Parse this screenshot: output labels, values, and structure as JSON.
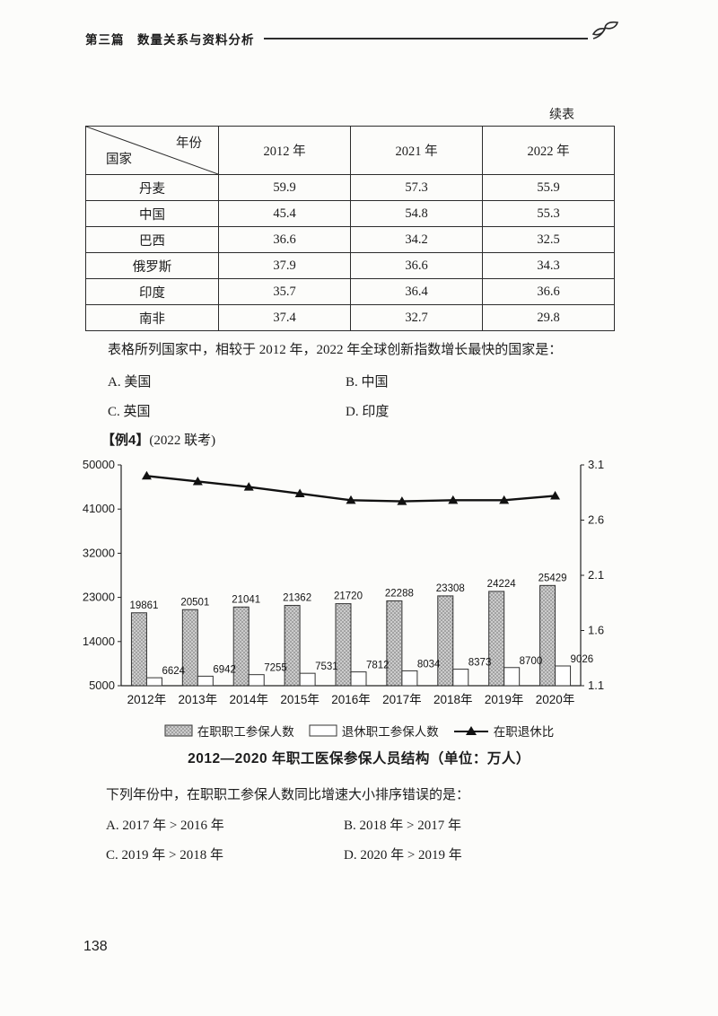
{
  "header": {
    "section": "第三篇　数量关系与资料分析"
  },
  "continued_label": "续表",
  "table": {
    "corner": {
      "top": "年份",
      "bottom": "国家"
    },
    "columns": [
      "2012 年",
      "2021 年",
      "2022 年"
    ],
    "rows": [
      {
        "country": "丹麦",
        "values": [
          "59.9",
          "57.3",
          "55.9"
        ]
      },
      {
        "country": "中国",
        "values": [
          "45.4",
          "54.8",
          "55.3"
        ]
      },
      {
        "country": "巴西",
        "values": [
          "36.6",
          "34.2",
          "32.5"
        ]
      },
      {
        "country": "俄罗斯",
        "values": [
          "37.9",
          "36.6",
          "34.3"
        ]
      },
      {
        "country": "印度",
        "values": [
          "35.7",
          "36.4",
          "36.6"
        ]
      },
      {
        "country": "南非",
        "values": [
          "37.4",
          "32.7",
          "29.8"
        ]
      }
    ]
  },
  "question1": {
    "stem": "表格所列国家中，相较于 2012 年，2022 年全球创新指数增长最快的国家是：",
    "options": [
      "A. 美国",
      "B. 中国",
      "C. 英国",
      "D. 印度"
    ]
  },
  "example": {
    "tag": "【例4】",
    "source": "(2022 联考)"
  },
  "chart_data": {
    "type": "bar+line",
    "title": "2012—2020 年职工医保参保人员结构（单位：万人）",
    "categories": [
      "2012年",
      "2013年",
      "2014年",
      "2015年",
      "2016年",
      "2017年",
      "2018年",
      "2019年",
      "2020年"
    ],
    "series": [
      {
        "name": "在职职工参保人数",
        "type": "bar",
        "style": "dotted-gray",
        "axis": "left",
        "values": [
          19861,
          20501,
          21041,
          21362,
          21720,
          22288,
          23308,
          24224,
          25429
        ]
      },
      {
        "name": "退休职工参保人数",
        "type": "bar",
        "style": "white",
        "axis": "left",
        "values": [
          6624,
          6942,
          7255,
          7531,
          7812,
          8034,
          8373,
          8700,
          9026
        ]
      },
      {
        "name": "在职退休比",
        "type": "line",
        "axis": "right",
        "values": [
          3.0,
          2.95,
          2.9,
          2.84,
          2.78,
          2.77,
          2.78,
          2.78,
          2.82
        ]
      }
    ],
    "left_axis": {
      "min": 5000,
      "max": 50000,
      "ticks": [
        5000,
        14000,
        23000,
        32000,
        41000,
        50000
      ]
    },
    "right_axis": {
      "min": 1.1,
      "max": 3.1,
      "ticks": [
        1.1,
        1.6,
        2.1,
        2.6,
        3.1
      ]
    },
    "legend_position": "bottom",
    "grid": false
  },
  "question2": {
    "stem": "下列年份中，在职职工参保人数同比增速大小排序错误的是：",
    "options": [
      "A. 2017 年 > 2016 年",
      "B. 2018 年 > 2017 年",
      "C. 2019 年 > 2018 年",
      "D. 2020 年 > 2019 年"
    ]
  },
  "page_number": "138"
}
